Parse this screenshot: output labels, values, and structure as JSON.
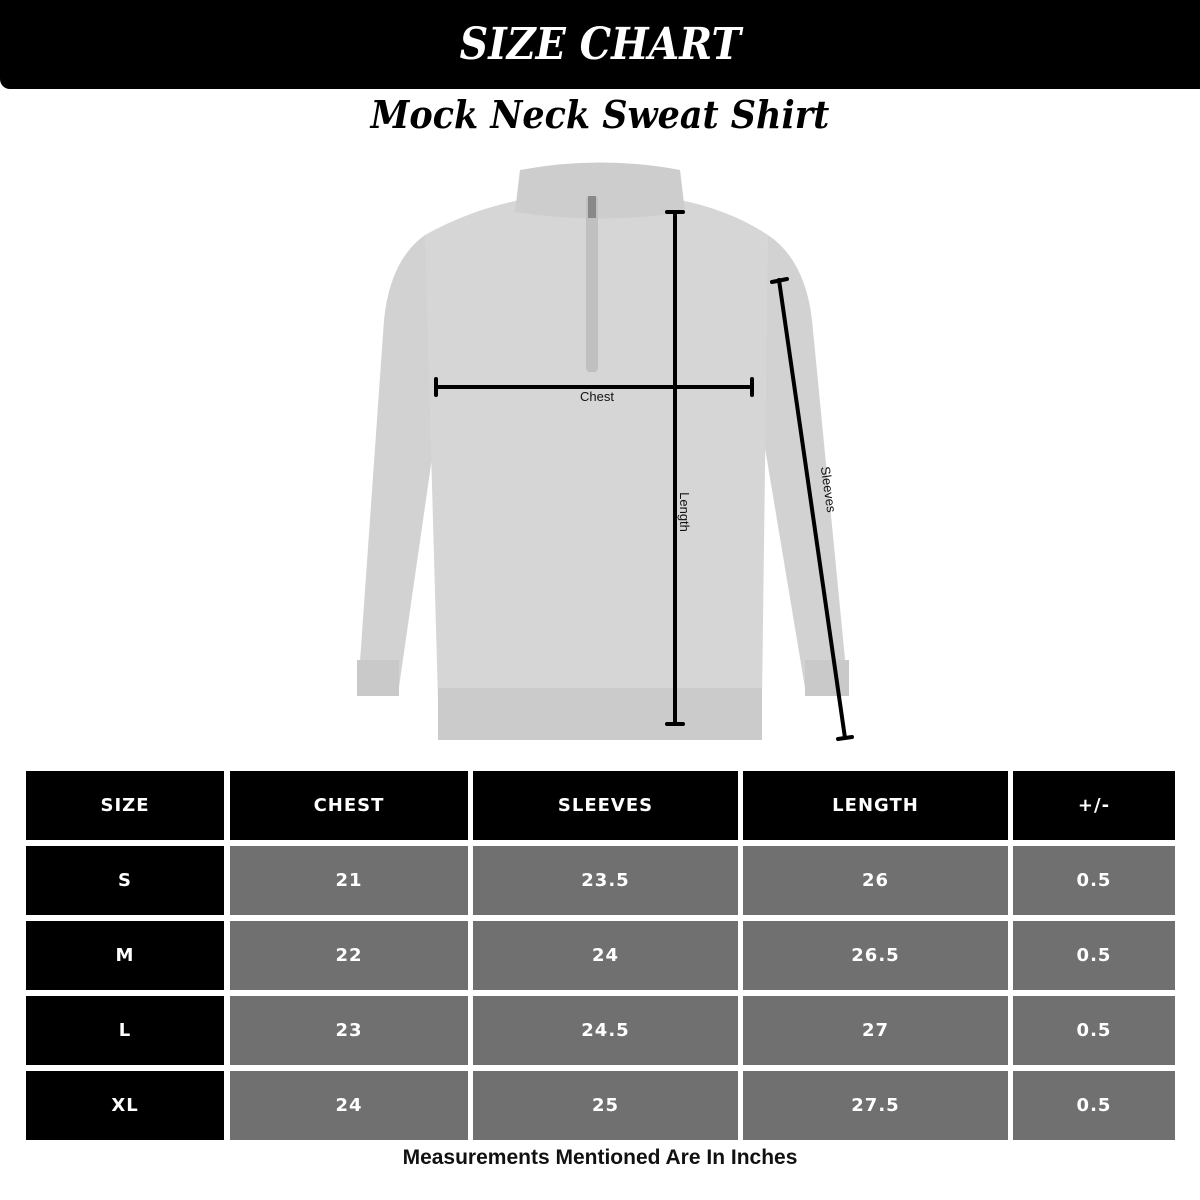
{
  "header": {
    "title": "SIZE CHART",
    "subtitle": "Mock Neck Sweat Shirt"
  },
  "diagram": {
    "labels": {
      "chest": "Chest",
      "length": "Length",
      "sleeves": "Sleeves"
    }
  },
  "table": {
    "columns": [
      "SIZE",
      "CHEST",
      "SLEEVES",
      "LENGTH",
      "+/-"
    ],
    "rows": [
      [
        "S",
        "21",
        "23.5",
        "26",
        "0.5"
      ],
      [
        "M",
        "22",
        "24",
        "26.5",
        "0.5"
      ],
      [
        "L",
        "23",
        "24.5",
        "27",
        "0.5"
      ],
      [
        "XL",
        "24",
        "25",
        "27.5",
        "0.5"
      ]
    ]
  },
  "footer": "Measurements Mentioned Are In Inches",
  "colors": {
    "header_bg": "#000000",
    "cell_bg": "#717070",
    "garment": "#d4d4d4"
  }
}
